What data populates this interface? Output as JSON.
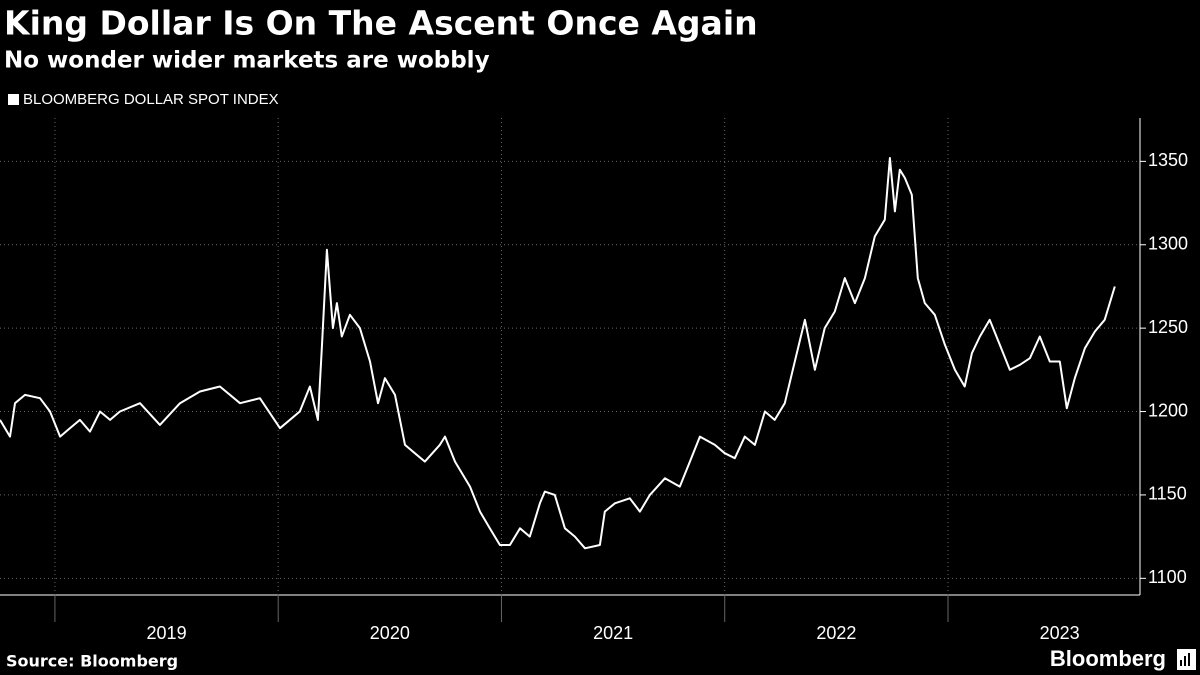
{
  "chart_data": {
    "type": "line",
    "title": "King Dollar Is On The Ascent Once Again",
    "subtitle": "No wonder wider markets are wobbly",
    "source": "Source: Bloomberg",
    "brand": "Bloomberg",
    "series": [
      {
        "name": "BLOOMBERG DOLLAR SPOT INDEX",
        "color": "#ffffff",
        "x": [
          2018.754,
          2018.799,
          2018.821,
          2018.866,
          2018.933,
          2018.978,
          2019.023,
          2019.067,
          2019.112,
          2019.157,
          2019.202,
          2019.247,
          2019.291,
          2019.381,
          2019.47,
          2019.56,
          2019.65,
          2019.739,
          2019.829,
          2019.918,
          2020.008,
          2020.097,
          2020.142,
          2020.178,
          2020.196,
          2020.218,
          2020.245,
          2020.263,
          2020.285,
          2020.321,
          2020.366,
          2020.411,
          2020.447,
          2020.478,
          2020.523,
          2020.568,
          2020.612,
          2020.657,
          2020.724,
          2020.747,
          2020.792,
          2020.859,
          2020.904,
          2020.948,
          2020.993,
          2021.038,
          2021.083,
          2021.127,
          2021.172,
          2021.194,
          2021.239,
          2021.284,
          2021.329,
          2021.374,
          2021.441,
          2021.463,
          2021.508,
          2021.575,
          2021.62,
          2021.665,
          2021.732,
          2021.799,
          2021.844,
          2021.889,
          2021.956,
          2022.0,
          2022.045,
          2022.09,
          2022.135,
          2022.18,
          2022.224,
          2022.269,
          2022.314,
          2022.359,
          2022.404,
          2022.448,
          2022.493,
          2022.538,
          2022.583,
          2022.628,
          2022.672,
          2022.717,
          2022.74,
          2022.762,
          2022.784,
          2022.807,
          2022.838,
          2022.865,
          2022.896,
          2022.941,
          2022.986,
          2023.031,
          2023.075,
          2023.107,
          2023.143,
          2023.187,
          2023.232,
          2023.277,
          2023.322,
          2023.367,
          2023.411,
          2023.456,
          2023.501,
          2023.532,
          2023.568,
          2023.613,
          2023.658,
          2023.702,
          2023.747
        ],
        "values": [
          1195,
          1185,
          1205,
          1210,
          1208,
          1200,
          1185,
          1190,
          1195,
          1188,
          1200,
          1195,
          1200,
          1205,
          1192,
          1205,
          1212,
          1215,
          1205,
          1208,
          1190,
          1200,
          1215,
          1195,
          1240,
          1297,
          1250,
          1265,
          1245,
          1258,
          1250,
          1230,
          1205,
          1220,
          1210,
          1180,
          1175,
          1170,
          1180,
          1185,
          1170,
          1155,
          1140,
          1130,
          1120,
          1120,
          1130,
          1125,
          1145,
          1152,
          1150,
          1130,
          1125,
          1118,
          1120,
          1140,
          1145,
          1148,
          1140,
          1150,
          1160,
          1155,
          1170,
          1185,
          1180,
          1175,
          1172,
          1185,
          1180,
          1200,
          1195,
          1205,
          1230,
          1255,
          1225,
          1250,
          1260,
          1280,
          1265,
          1280,
          1305,
          1315,
          1352,
          1320,
          1345,
          1340,
          1330,
          1280,
          1265,
          1258,
          1240,
          1225,
          1215,
          1235,
          1245,
          1255,
          1240,
          1225,
          1228,
          1232,
          1245,
          1230,
          1230,
          1202,
          1220,
          1238,
          1248,
          1255,
          1275
        ]
      }
    ],
    "xlim": [
      2018.754,
      2023.86
    ],
    "xticks": [
      {
        "value": 2019,
        "label": "2019"
      },
      {
        "value": 2020,
        "label": "2020"
      },
      {
        "value": 2021,
        "label": "2021"
      },
      {
        "value": 2022,
        "label": "2022"
      },
      {
        "value": 2023,
        "label": "2023"
      }
    ],
    "ylim": [
      1090,
      1376
    ],
    "yticks": [
      1100,
      1150,
      1200,
      1250,
      1300,
      1350
    ],
    "grid": true
  }
}
